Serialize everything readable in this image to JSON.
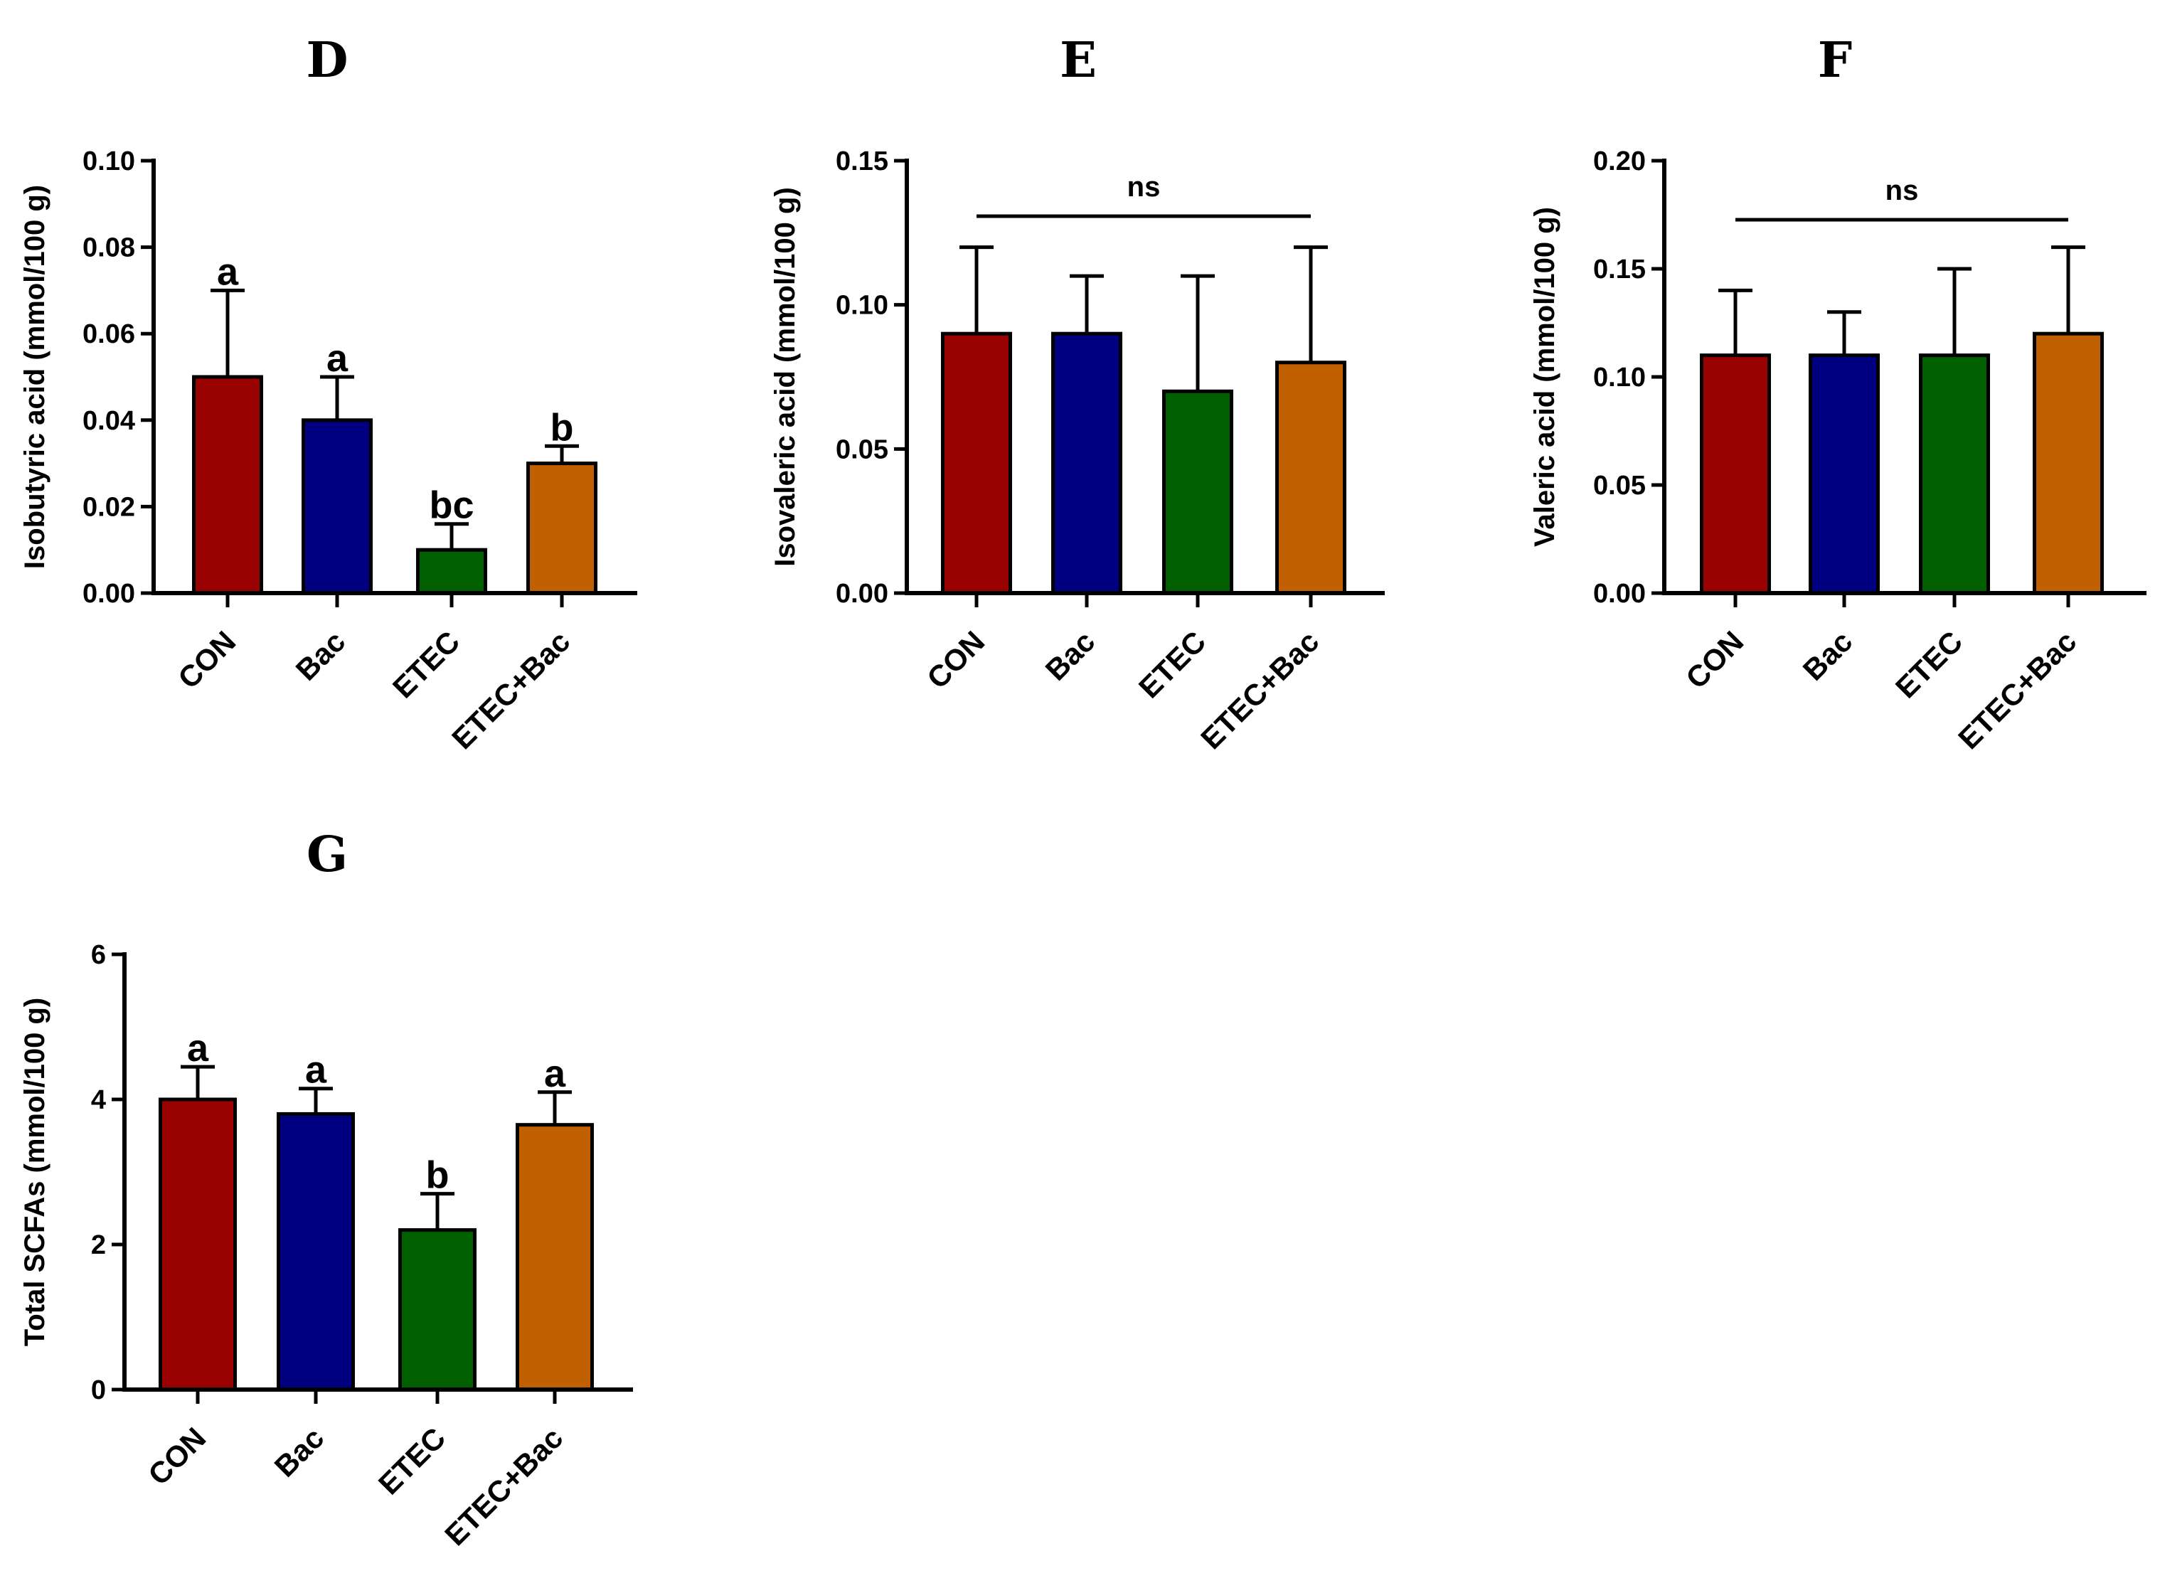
{
  "colors": {
    "CON": "#990000",
    "Bac": "#000080",
    "ETEC": "#006000",
    "ETEC+Bac": "#C06000",
    "axis": "#000000"
  },
  "chart_data": [
    {
      "type": "bar",
      "panel": "D",
      "ylabel": "Isobutyric acid (mmol/100 g)",
      "categories": [
        "CON",
        "Bac",
        "ETEC",
        "ETEC+Bac"
      ],
      "values": [
        0.05,
        0.04,
        0.01,
        0.03
      ],
      "errors": [
        0.02,
        0.01,
        0.006,
        0.004
      ],
      "significance": [
        "a",
        "a",
        "bc",
        "b"
      ],
      "ylim": [
        0,
        0.1
      ],
      "yticks": [
        0,
        0.02,
        0.04,
        0.06,
        0.08,
        0.1
      ],
      "yticklabels": [
        "0.00",
        "0.02",
        "0.04",
        "0.06",
        "0.08",
        "0.10"
      ]
    },
    {
      "type": "bar",
      "panel": "E",
      "ylabel": "Isovaleric acid (mmol/100 g)",
      "categories": [
        "CON",
        "Bac",
        "ETEC",
        "ETEC+Bac"
      ],
      "values": [
        0.09,
        0.09,
        0.07,
        0.08
      ],
      "errors": [
        0.03,
        0.02,
        0.04,
        0.04
      ],
      "annotation": "ns",
      "ylim": [
        0,
        0.15
      ],
      "yticks": [
        0,
        0.05,
        0.1,
        0.15
      ],
      "yticklabels": [
        "0.00",
        "0.05",
        "0.10",
        "0.15"
      ]
    },
    {
      "type": "bar",
      "panel": "F",
      "ylabel": "Valeric acid (mmol/100 g)",
      "categories": [
        "CON",
        "Bac",
        "ETEC",
        "ETEC+Bac"
      ],
      "values": [
        0.11,
        0.11,
        0.11,
        0.12
      ],
      "errors": [
        0.03,
        0.02,
        0.04,
        0.04
      ],
      "annotation": "ns",
      "ylim": [
        0,
        0.2
      ],
      "yticks": [
        0,
        0.05,
        0.1,
        0.15,
        0.2
      ],
      "yticklabels": [
        "0.00",
        "0.05",
        "0.10",
        "0.15",
        "0.20"
      ]
    },
    {
      "type": "bar",
      "panel": "G",
      "ylabel": "Total SCFAs (mmol/100 g)",
      "categories": [
        "CON",
        "Bac",
        "ETEC",
        "ETEC+Bac"
      ],
      "values": [
        4.0,
        3.8,
        2.2,
        3.65
      ],
      "errors": [
        0.45,
        0.35,
        0.5,
        0.45
      ],
      "significance": [
        "a",
        "a",
        "b",
        "a"
      ],
      "ylim": [
        0,
        6
      ],
      "yticks": [
        0,
        2,
        4,
        6
      ],
      "yticklabels": [
        "0",
        "2",
        "4",
        "6"
      ]
    }
  ]
}
